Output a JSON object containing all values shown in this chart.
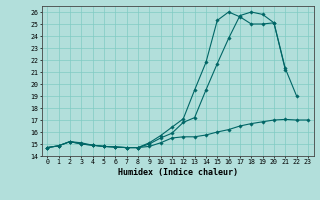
{
  "xlabel": "Humidex (Indice chaleur)",
  "bg_color": "#b2dfdb",
  "line_color": "#006666",
  "grid_color": "#80cbc4",
  "xlim": [
    -0.5,
    23.5
  ],
  "ylim": [
    14,
    26.5
  ],
  "xticks": [
    0,
    1,
    2,
    3,
    4,
    5,
    6,
    7,
    8,
    9,
    10,
    11,
    12,
    13,
    14,
    15,
    16,
    17,
    18,
    19,
    20,
    21,
    22,
    23
  ],
  "yticks": [
    14,
    15,
    16,
    17,
    18,
    19,
    20,
    21,
    22,
    23,
    24,
    25,
    26
  ],
  "line1_x": [
    0,
    1,
    2,
    3,
    4,
    5,
    6,
    7,
    8,
    9,
    10,
    11,
    12,
    13,
    14,
    15,
    16,
    17,
    18,
    19,
    20,
    21,
    22,
    23
  ],
  "line1_y": [
    14.7,
    14.85,
    15.2,
    15.1,
    14.9,
    14.8,
    14.75,
    14.7,
    14.7,
    14.8,
    15.1,
    15.5,
    15.6,
    15.6,
    15.75,
    16.0,
    16.2,
    16.5,
    16.7,
    16.85,
    17.0,
    17.05,
    17.0,
    17.0
  ],
  "line2_x": [
    0,
    1,
    2,
    3,
    4,
    5,
    6,
    7,
    8,
    9,
    10,
    11,
    12,
    13,
    14,
    15,
    16,
    17,
    18,
    19,
    20,
    21
  ],
  "line2_y": [
    14.7,
    14.85,
    15.2,
    15.0,
    14.9,
    14.8,
    14.75,
    14.7,
    14.7,
    15.0,
    15.5,
    15.9,
    16.8,
    17.2,
    19.5,
    21.7,
    23.8,
    25.7,
    26.0,
    25.8,
    25.1,
    21.2
  ],
  "line3_x": [
    0,
    1,
    2,
    3,
    4,
    5,
    6,
    7,
    8,
    9,
    10,
    11,
    12,
    13,
    14,
    15,
    16,
    17,
    18,
    19,
    20,
    21,
    22
  ],
  "line3_y": [
    14.7,
    14.85,
    15.2,
    15.0,
    14.9,
    14.8,
    14.75,
    14.7,
    14.7,
    15.1,
    15.7,
    16.4,
    17.1,
    19.5,
    21.8,
    25.3,
    26.0,
    25.6,
    25.0,
    25.0,
    25.1,
    21.3,
    19.0
  ]
}
